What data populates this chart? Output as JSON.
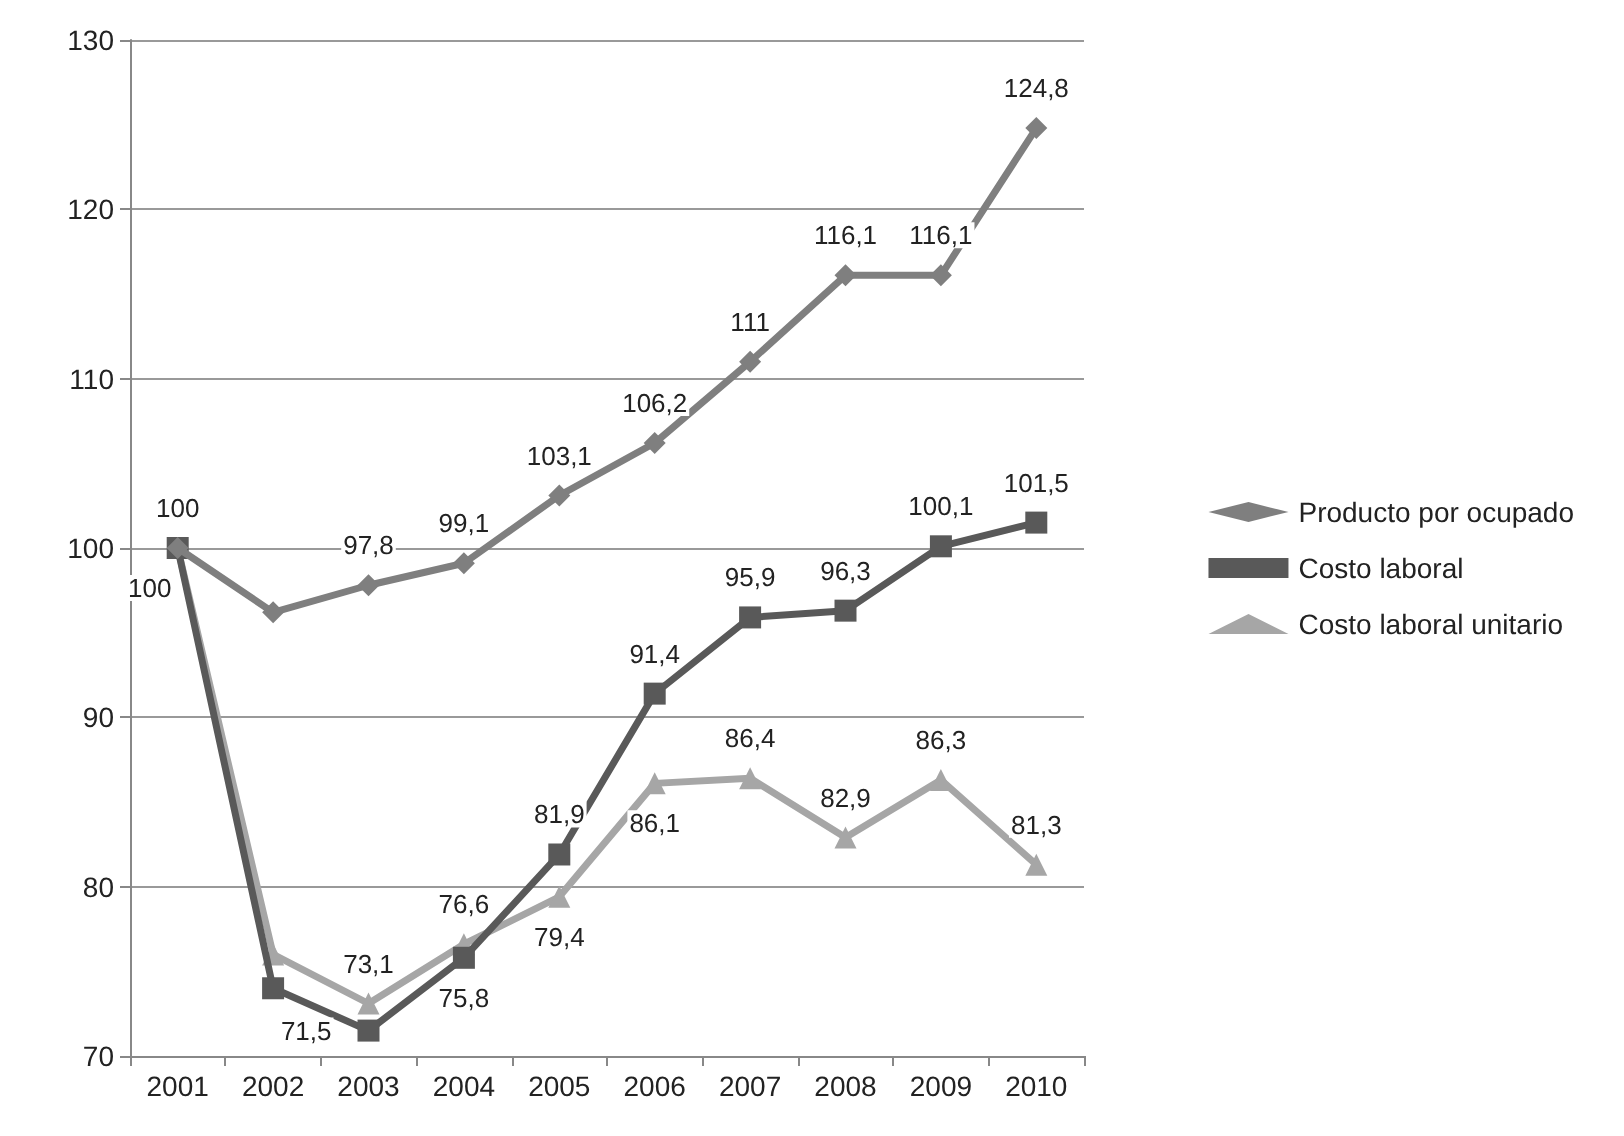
{
  "chart_data": {
    "type": "line",
    "categories": [
      "2001",
      "2002",
      "2003",
      "2004",
      "2005",
      "2006",
      "2007",
      "2008",
      "2009",
      "2010"
    ],
    "series": [
      {
        "name": "Producto por ocupado",
        "color": "#7f7f7f",
        "marker": "diamond",
        "values": [
          100,
          96.2,
          97.8,
          99.1,
          103.1,
          106.2,
          111,
          116.1,
          116.1,
          124.8
        ],
        "value_labels": [
          "100",
          null,
          "97,8",
          "99,1",
          "103,1",
          "106,2",
          "111",
          "116,1",
          "116,1",
          "124,8"
        ]
      },
      {
        "name": "Costo laboral",
        "color": "#595959",
        "marker": "square",
        "values": [
          100,
          74,
          71.5,
          75.8,
          81.9,
          91.4,
          95.9,
          96.3,
          100.1,
          101.5
        ],
        "value_labels": [
          null,
          null,
          "71,5",
          "75,8",
          "81,9",
          "91,4",
          "95,9",
          "96,3",
          "100,1",
          "101,5"
        ]
      },
      {
        "name": "Costo laboral unitario",
        "color": "#a6a6a6",
        "marker": "triangle",
        "values": [
          100,
          76,
          73.1,
          76.6,
          79.4,
          86.1,
          86.4,
          82.9,
          86.3,
          81.3
        ],
        "value_labels": [
          "100",
          null,
          "73,1",
          "76,6",
          "79,4",
          "86,1",
          "86,4",
          "82,9",
          "86,3",
          "81,3"
        ]
      }
    ],
    "ylim": [
      70,
      130
    ],
    "yticks": [
      70,
      80,
      90,
      100,
      110,
      120,
      130
    ],
    "grid": "y",
    "legend": "right"
  }
}
